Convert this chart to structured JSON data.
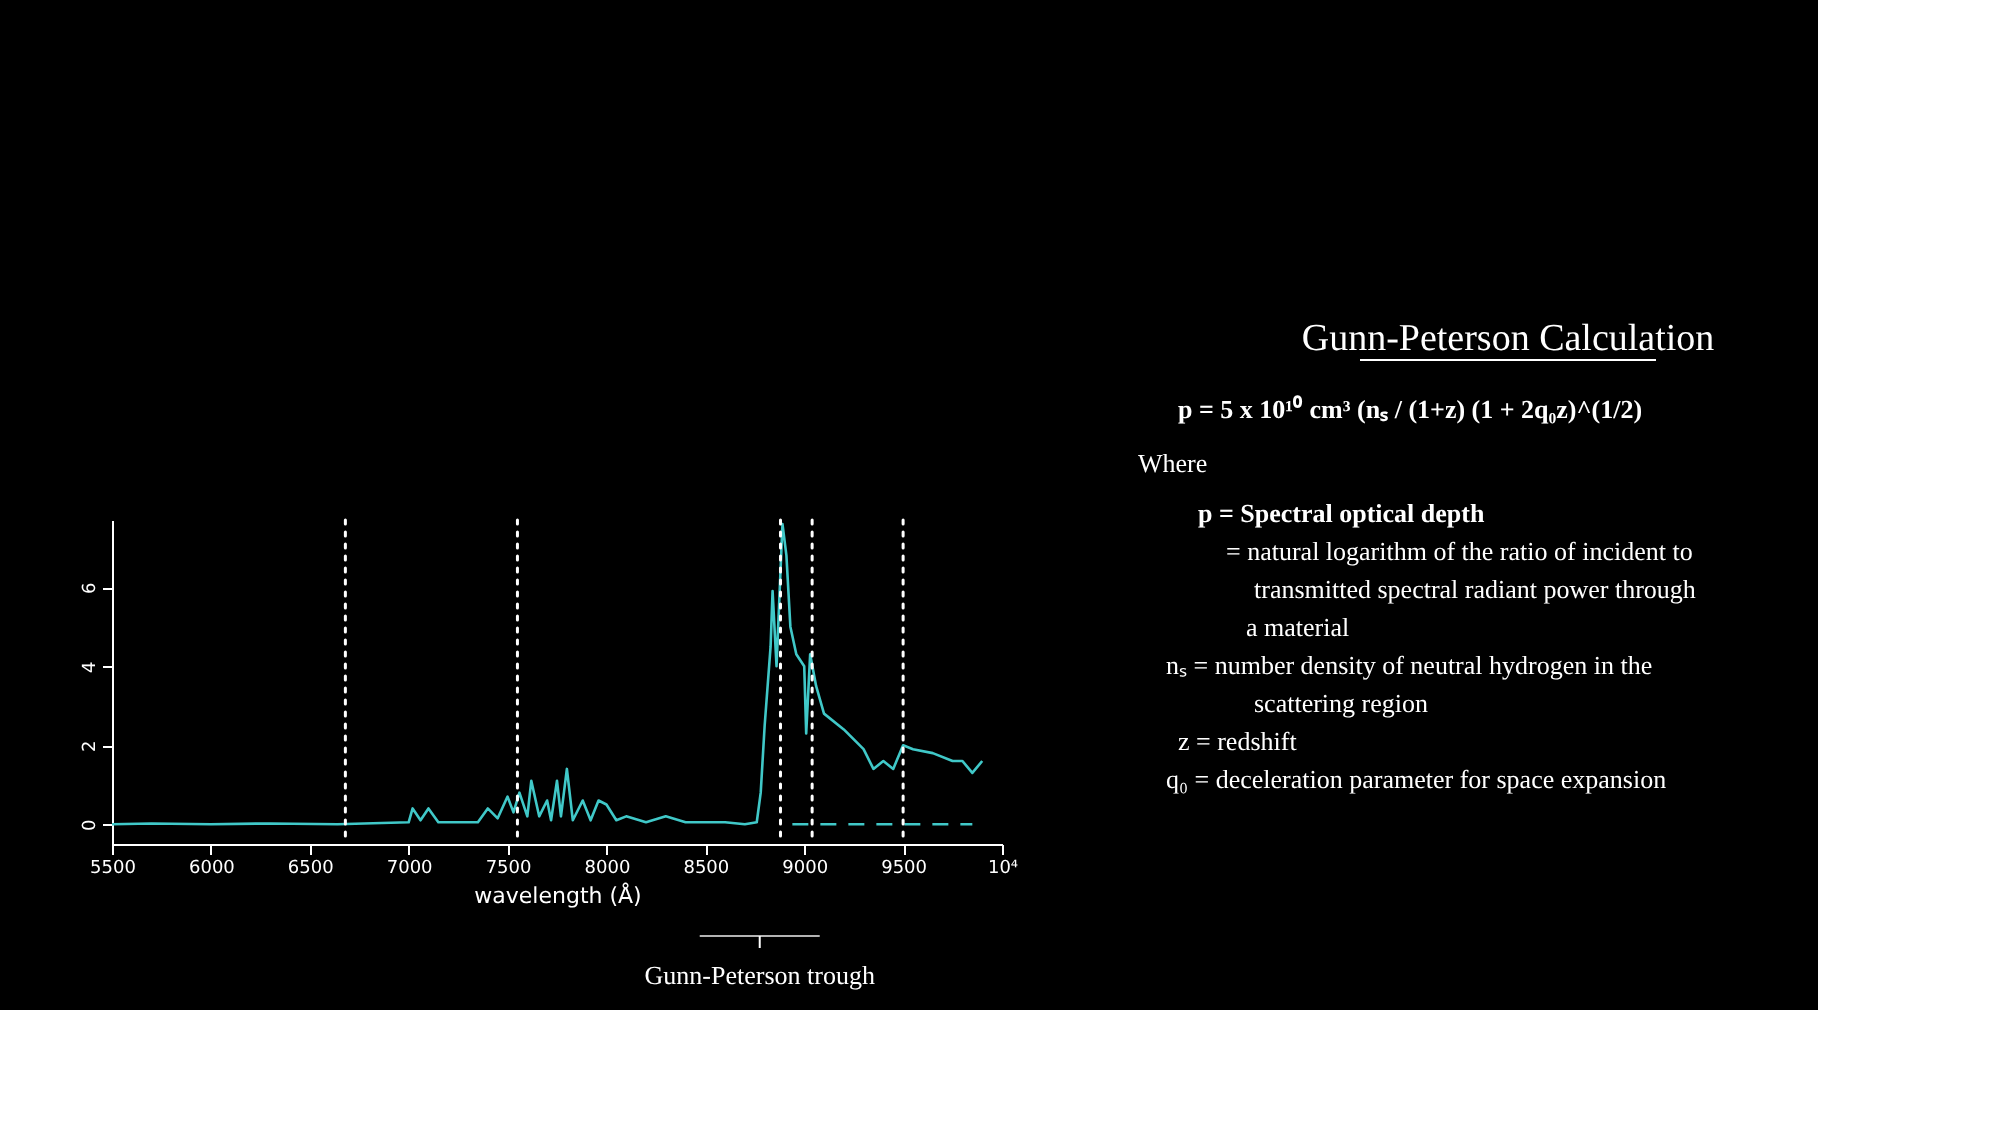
{
  "chart_data": [
    {
      "type": "line",
      "xlabel": "wavelength (Å)",
      "x": [
        5500,
        5700,
        6000,
        6300,
        6640,
        7000,
        7020,
        7060,
        7100,
        7150,
        7350,
        7400,
        7450,
        7500,
        7530,
        7560,
        7600,
        7620,
        7660,
        7700,
        7720,
        7750,
        7770,
        7800,
        7830,
        7880,
        7920,
        7960,
        8000,
        8050,
        8100,
        8200,
        8300,
        8400,
        8600,
        8700,
        8760,
        8780,
        8800,
        8830,
        8840,
        8860,
        8890,
        8910,
        8930,
        8960,
        9000,
        9010,
        9030,
        9060,
        9100,
        9200,
        9300,
        9350,
        9400,
        9450,
        9500,
        9550,
        9650,
        9750,
        9800,
        9850,
        9900
      ],
      "series": [
        {
          "color": "#40c8c8",
          "values": [
            0,
            0.02,
            0,
            0.02,
            0,
            0.05,
            0.4,
            0.1,
            0.4,
            0.05,
            0.05,
            0.4,
            0.15,
            0.7,
            0.3,
            0.8,
            0.2,
            1.1,
            0.2,
            0.6,
            0.1,
            1.1,
            0.2,
            1.4,
            0.1,
            0.6,
            0.1,
            0.6,
            0.5,
            0.1,
            0.2,
            0.05,
            0.2,
            0.05,
            0.05,
            0,
            0.05,
            0.8,
            2.5,
            4.5,
            5.9,
            4.0,
            7.6,
            6.8,
            5.0,
            4.3,
            4.0,
            2.3,
            4.3,
            3.5,
            2.8,
            2.4,
            1.9,
            1.4,
            1.6,
            1.4,
            2.0,
            1.9,
            1.8,
            1.6,
            1.6,
            1.3,
            1.6
          ]
        },
        {
          "color": "#40c8c8",
          "line_style": "dashed",
          "x": [
            8940,
            9850
          ],
          "values": [
            0,
            0
          ]
        }
      ],
      "xlim": [
        5500,
        10000
      ],
      "xticks": [
        5500,
        6000,
        6500,
        7000,
        7500,
        8000,
        8500,
        9000,
        9500,
        {
          "value": 10000,
          "label": "10⁴"
        }
      ],
      "ylim": [
        -0.5,
        7.7
      ],
      "yticks": [
        0,
        2,
        4,
        6
      ],
      "grid": false,
      "ref_lines": [
        {
          "axis": "x",
          "value": 6680,
          "color": "#ffffff",
          "line_style": "dotted"
        },
        {
          "axis": "x",
          "value": 7550,
          "color": "#ffffff",
          "line_style": "dotted"
        },
        {
          "axis": "x",
          "value": 8880,
          "color": "#ffffff",
          "line_style": "dotted"
        },
        {
          "axis": "x",
          "value": 9040,
          "color": "#ffffff",
          "line_style": "dotted"
        },
        {
          "axis": "x",
          "value": 9500,
          "color": "#ffffff",
          "line_style": "dotted"
        }
      ],
      "annotations": [
        {
          "text": "Gunn-Peterson trough",
          "x": 8775
        }
      ]
    },
    {
      "type": "other",
      "title": "Gunn-Peterson Calculation",
      "annotations": [
        "p = 5 x 10¹⁰ cm³ (nₛ / (1+z) (1 + 2q₀z)^(1/2)",
        "Where",
        "p = Spectral optical depth",
        "= natural logarithm of the ratio of incident to",
        "transmitted spectral radiant power through",
        "a material",
        "nₛ = number density of neutral hydrogen in the",
        "scattering region",
        "z = redshift",
        "q₀ = deceleration parameter for space expansion"
      ]
    }
  ]
}
